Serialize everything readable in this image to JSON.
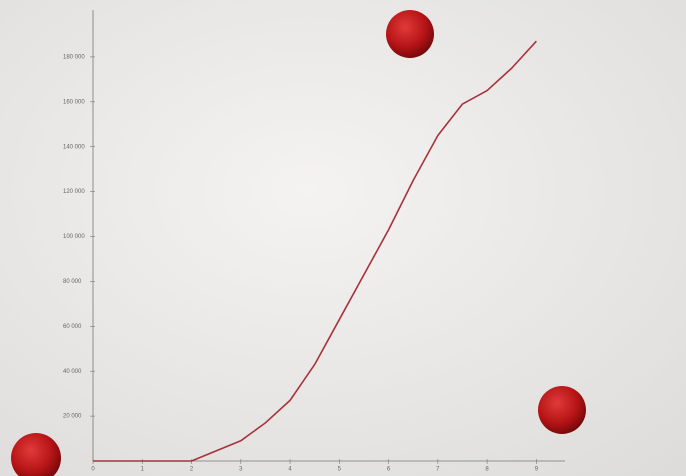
{
  "chart_data": {
    "type": "line",
    "x": [
      0,
      1,
      2,
      3,
      3.5,
      4,
      4.5,
      5,
      5.5,
      6,
      6.5,
      7,
      7.5,
      8,
      8.5,
      9
    ],
    "values": [
      0,
      0,
      0,
      9000,
      17000,
      27000,
      43000,
      63000,
      83000,
      103000,
      125000,
      145000,
      159000,
      165000,
      175000,
      187000
    ],
    "color": "#a8323a",
    "xlim": [
      0,
      9.5
    ],
    "xticks": [
      0,
      1,
      2,
      3,
      4,
      5,
      6,
      7,
      8,
      9
    ],
    "ylim": [
      0,
      200000
    ],
    "yticks": [
      {
        "value": 20000,
        "label": "20 000"
      },
      {
        "value": 40000,
        "label": "40 000"
      },
      {
        "value": 60000,
        "label": "60 000"
      },
      {
        "value": 80000,
        "label": "80 000"
      },
      {
        "value": 100000,
        "label": "100 000"
      },
      {
        "value": 120000,
        "label": "120 000"
      },
      {
        "value": 140000,
        "label": "140 000"
      },
      {
        "value": 160000,
        "label": "160 000"
      },
      {
        "value": 180000,
        "label": "180 000"
      }
    ]
  }
}
